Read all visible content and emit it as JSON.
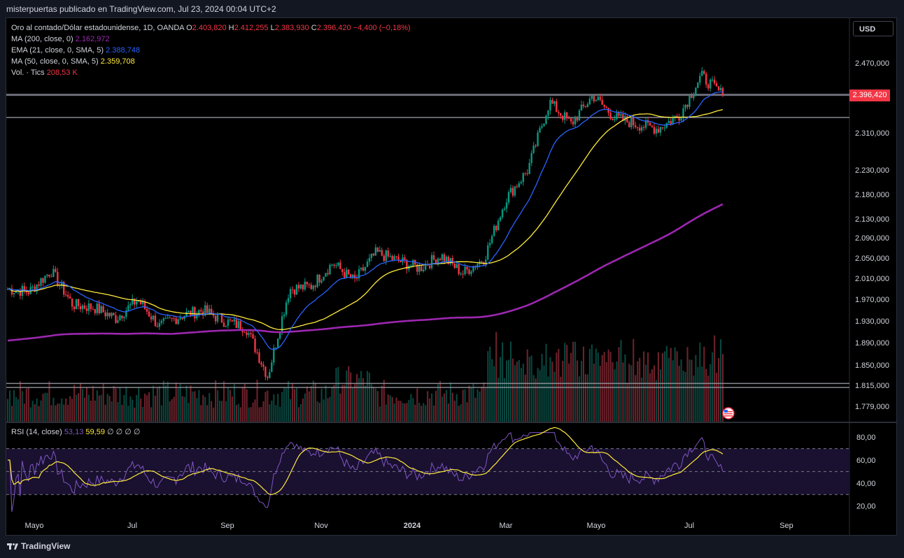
{
  "header": {
    "published_text": "misterpuertas publicado en TradingView.com, Jul 23, 2024 00:04 UTC+2"
  },
  "legend": {
    "symbol": "Oro al contado/Dólar estadounidense, 1D, OANDA",
    "o_label": "O",
    "o_value": "2.403,820",
    "h_label": "H",
    "h_value": "2.412,255",
    "l_label": "L",
    "l_value": "2.383,930",
    "c_label": "C",
    "c_value": "2.396,420",
    "change": "−4,400 (−0,18%)",
    "ma200_label": "MA (200, close, 0)",
    "ma200_value": "2.162,972",
    "ema21_label": "EMA (21, close, 0, SMA, 5)",
    "ema21_value": "2.388,748",
    "ma50_label": "MA (50, close, 0, SMA, 5)",
    "ma50_value": "2.359,708",
    "vol_label": "Vol. · Tics",
    "vol_value": "208,53 K"
  },
  "rsi_legend": {
    "label": "RSI (14, close)",
    "value1": "53,13",
    "value2": "59,59",
    "extra": "∅ ∅ ∅ ∅"
  },
  "currency_button": "USD",
  "last_price": "2.396,420",
  "footer": {
    "brand": "TradingView"
  },
  "colors": {
    "up": "#089981",
    "down": "#f23645",
    "ma200": "#9c27b0",
    "ema21": "#2962ff",
    "ma50": "#ffeb3b",
    "rsi": "#7e57c2"
  },
  "chart_data": {
    "type": "candlestick",
    "price_axis": {
      "ticks": [
        "2.470,000",
        "2.310,000",
        "2.230,000",
        "2.180,000",
        "2.130,000",
        "2.090,000",
        "2.050,000",
        "2.010,000",
        "1.970,000",
        "1.930,000",
        "1.890,000",
        "1.850,000",
        "1.815,000",
        "1.779,000"
      ],
      "scale": "log"
    },
    "rsi_axis": {
      "ticks": [
        "80,00",
        "60,00",
        "40,00",
        "20,00"
      ]
    },
    "time_axis": {
      "ticks": [
        "Mayo",
        "Jul",
        "Sep",
        "Nov",
        "2024",
        "Mar",
        "Mayo",
        "Jul",
        "Sep"
      ]
    },
    "horizontal_lines": [
      2396.42,
      2345,
      1818,
      1811
    ],
    "monthly_path": [
      1990,
      1985,
      2025,
      1960,
      1955,
      1935,
      1970,
      1920,
      1940,
      1950,
      1930,
      1918,
      1830,
      1990,
      1995,
      2040,
      2005,
      2060,
      2045,
      2030,
      2055,
      2020,
      2050,
      2170,
      2230,
      2380,
      2330,
      2395,
      2345,
      2330,
      2320,
      2350,
      2440,
      2396
    ]
  }
}
